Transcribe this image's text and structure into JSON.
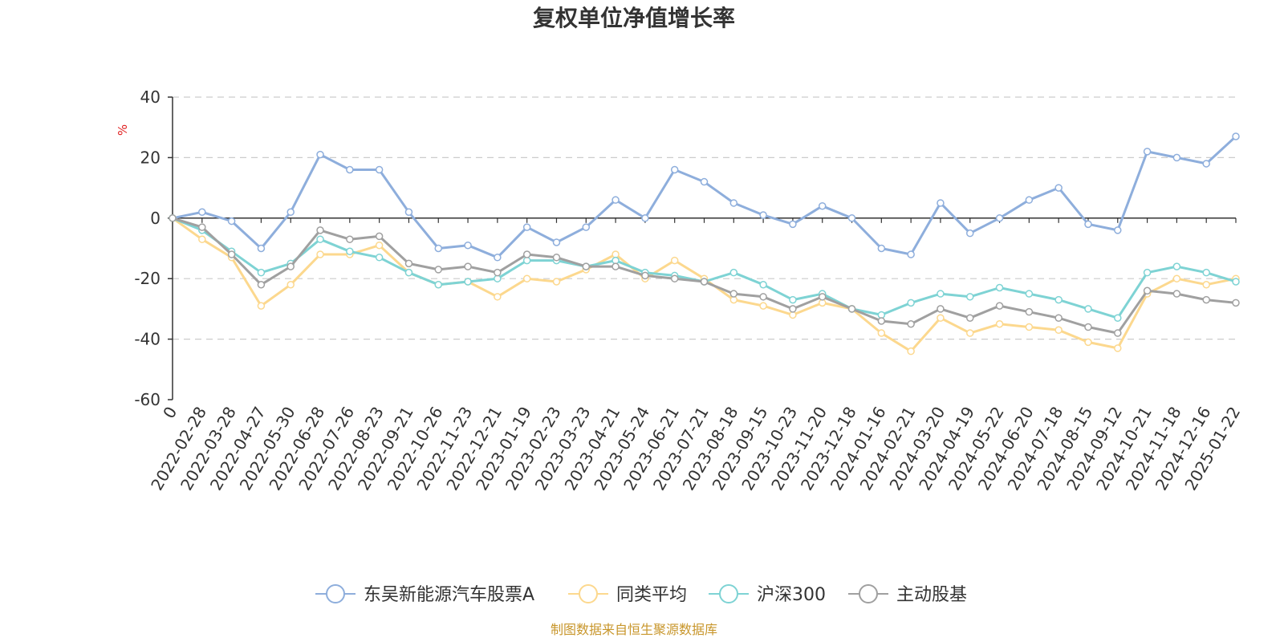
{
  "chart_data": {
    "type": "line",
    "title": "复权单位净值增长率",
    "y_unit": "%",
    "ylim": [
      -60,
      40
    ],
    "y_ticks": [
      40,
      20,
      0,
      -20,
      -40,
      -60
    ],
    "x_tick_labels": [
      "0",
      "2022-02-28",
      "2022-03-28",
      "2022-04-27",
      "2022-05-30",
      "2022-06-28",
      "2022-07-26",
      "2022-08-23",
      "2022-09-21",
      "2022-10-26",
      "2022-11-23",
      "2022-12-21",
      "2023-01-19",
      "2023-02-23",
      "2023-03-23",
      "2023-04-21",
      "2023-05-24",
      "2023-06-21",
      "2023-07-21",
      "2023-08-18",
      "2023-09-15",
      "2023-10-23",
      "2023-11-20",
      "2023-12-18",
      "2024-01-16",
      "2024-02-21",
      "2024-03-20",
      "2024-04-19",
      "2024-05-22",
      "2024-06-20",
      "2024-07-18",
      "2024-08-15",
      "2024-09-12",
      "2024-10-21",
      "2024-11-18",
      "2024-12-16",
      "2025-01-22"
    ],
    "grid": "horizontal dashed",
    "legend_position": "bottom-center",
    "source": "制图数据来自恒生聚源数据库",
    "series": [
      {
        "name": "东吴新能源汽车股票A",
        "color": "#8eaedc",
        "values": [
          0,
          2,
          -1,
          -10,
          2,
          21,
          16,
          16,
          2,
          -10,
          -9,
          -13,
          -3,
          -8,
          -3,
          6,
          0,
          16,
          12,
          5,
          1,
          -2,
          4,
          0,
          -10,
          -12,
          5,
          -5,
          0,
          6,
          10,
          -2,
          -4,
          22,
          20,
          18,
          27
        ]
      },
      {
        "name": "同类平均",
        "color": "#fcd88e",
        "values": [
          0,
          -7,
          -13,
          -29,
          -22,
          -12,
          -12,
          -9,
          -18,
          -22,
          -21,
          -26,
          -20,
          -21,
          -17,
          -12,
          -20,
          -14,
          -20,
          -27,
          -29,
          -32,
          -28,
          -30,
          -38,
          -44,
          -33,
          -38,
          -35,
          -36,
          -37,
          -41,
          -43,
          -25,
          -20,
          -22,
          -20
        ]
      },
      {
        "name": "沪深300",
        "color": "#7ed3d4",
        "values": [
          0,
          -4,
          -11,
          -18,
          -15,
          -7,
          -11,
          -13,
          -18,
          -22,
          -21,
          -20,
          -14,
          -14,
          -16,
          -14,
          -18,
          -19,
          -21,
          -18,
          -22,
          -27,
          -25,
          -30,
          -32,
          -28,
          -25,
          -26,
          -23,
          -25,
          -27,
          -30,
          -33,
          -18,
          -16,
          -18,
          -21
        ]
      },
      {
        "name": "主动股基",
        "color": "#a0a0a0",
        "values": [
          0,
          -3,
          -12,
          -22,
          -16,
          -4,
          -7,
          -6,
          -15,
          -17,
          -16,
          -18,
          -12,
          -13,
          -16,
          -16,
          -19,
          -20,
          -21,
          -25,
          -26,
          -30,
          -26,
          -30,
          -34,
          -35,
          -30,
          -33,
          -29,
          -31,
          -33,
          -36,
          -38,
          -24,
          -25,
          -27,
          -28
        ]
      }
    ]
  }
}
